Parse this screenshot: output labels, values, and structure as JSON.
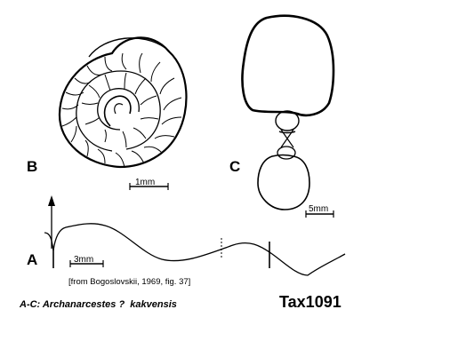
{
  "plate": {
    "panels": {
      "a": "A",
      "b": "B",
      "c": "C"
    },
    "scale_bars": {
      "b": "1mm",
      "c": "5mm",
      "a": "3mm"
    },
    "source": "[from Bogoslovskii, 1969, fig. 37]",
    "caption": "A-C: Archanarcestes ?  kakvensis",
    "taxon_id": "Tax1091"
  }
}
